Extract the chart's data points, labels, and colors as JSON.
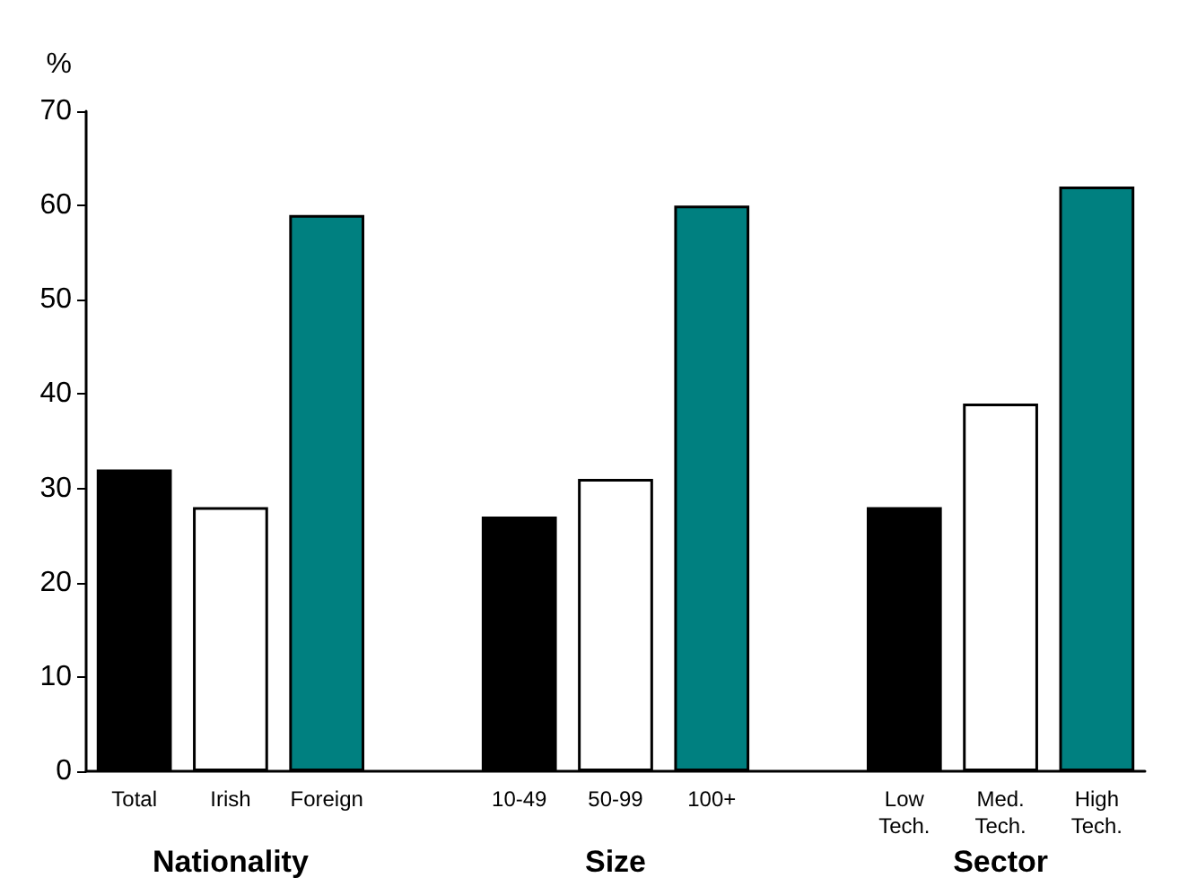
{
  "chart_data": {
    "type": "bar",
    "ylabel": "%",
    "categories": [
      "Total",
      "Irish",
      "Foreign",
      null,
      "10-49",
      "50-99",
      "100+",
      null,
      "Low\nTech.",
      "Med.\nTech.",
      "High\nTech."
    ],
    "values": [
      32,
      28,
      59,
      null,
      27,
      31,
      60,
      null,
      28,
      39,
      62
    ],
    "colors": [
      "#000000",
      "#ffffff",
      "#008080",
      null,
      "#000000",
      "#ffffff",
      "#008080",
      null,
      "#000000",
      "#ffffff",
      "#008080"
    ],
    "ylim": [
      0,
      70
    ],
    "yticks": [
      0,
      10,
      20,
      30,
      40,
      50,
      60,
      70
    ],
    "grid": false,
    "annotations": [
      "Nationality",
      "Size",
      "Sector"
    ]
  }
}
